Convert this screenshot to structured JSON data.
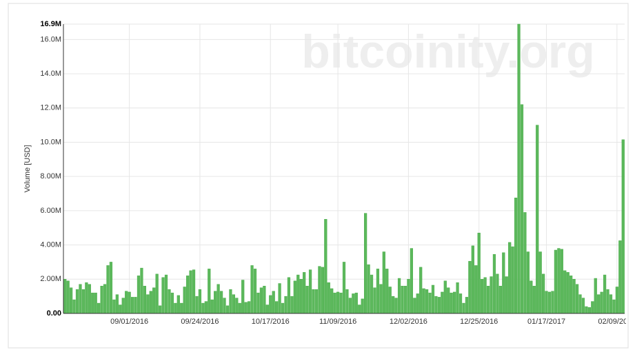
{
  "chart_data": {
    "type": "bar",
    "watermark": "bitcoinity.org",
    "y_label": "Volume [USD]",
    "categories": [
      null,
      null,
      null,
      null,
      null,
      null,
      null,
      null,
      null,
      null,
      null,
      null,
      null,
      null,
      null,
      null,
      null,
      null,
      null,
      null,
      null,
      "09/01/2016",
      null,
      null,
      null,
      null,
      null,
      null,
      null,
      null,
      null,
      null,
      null,
      null,
      null,
      null,
      null,
      null,
      null,
      null,
      null,
      null,
      null,
      null,
      "09/24/2016",
      null,
      null,
      null,
      null,
      null,
      null,
      null,
      null,
      null,
      null,
      null,
      null,
      null,
      null,
      null,
      null,
      null,
      null,
      null,
      null,
      null,
      null,
      "10/17/2016",
      null,
      null,
      null,
      null,
      null,
      null,
      null,
      null,
      null,
      null,
      null,
      null,
      null,
      null,
      null,
      null,
      null,
      null,
      null,
      null,
      null,
      "11/09/2016",
      null,
      null,
      null,
      null,
      null,
      null,
      null,
      null,
      null,
      null,
      null,
      null,
      null,
      null,
      null,
      null,
      null,
      null,
      null,
      null,
      null,
      null,
      "12/02/2016",
      null,
      null,
      null,
      null,
      null,
      null,
      null,
      null,
      null,
      null,
      null,
      null,
      null,
      null,
      null,
      null,
      null,
      null,
      null,
      null,
      null,
      null,
      "12/25/2016",
      null,
      null,
      null,
      null,
      null,
      null,
      null,
      null,
      null,
      null,
      null,
      null,
      null,
      null,
      null,
      null,
      null,
      null,
      null,
      null,
      null,
      "01/17/2017",
      null,
      null,
      null,
      null,
      null,
      null,
      null,
      null,
      null,
      null,
      null,
      null,
      null,
      null,
      null,
      null,
      null,
      null,
      null,
      null,
      null,
      null,
      "02/09/2017",
      null,
      null
    ],
    "values": [
      2.0,
      1.9,
      1.5,
      0.8,
      1.4,
      1.7,
      1.4,
      1.8,
      1.7,
      1.2,
      1.2,
      0.6,
      1.6,
      1.7,
      2.8,
      3.0,
      0.8,
      1.1,
      0.5,
      0.9,
      1.3,
      1.25,
      0.95,
      0.95,
      2.2,
      2.65,
      1.6,
      1.1,
      1.3,
      1.5,
      2.3,
      0.45,
      2.1,
      2.25,
      1.4,
      1.2,
      0.6,
      1.05,
      0.6,
      1.55,
      2.2,
      2.5,
      2.55,
      1.0,
      1.4,
      0.6,
      0.7,
      2.6,
      0.8,
      1.3,
      1.7,
      1.3,
      0.9,
      0.45,
      1.4,
      1.1,
      0.9,
      0.6,
      1.95,
      0.65,
      0.7,
      2.8,
      2.6,
      1.2,
      1.5,
      1.6,
      0.5,
      1.05,
      1.3,
      0.7,
      1.75,
      0.6,
      1.0,
      2.1,
      1.0,
      1.9,
      2.25,
      2.0,
      2.4,
      1.6,
      2.55,
      1.4,
      1.4,
      2.75,
      2.7,
      5.5,
      1.8,
      1.45,
      1.2,
      1.25,
      1.2,
      3.0,
      1.4,
      0.9,
      1.15,
      1.2,
      0.5,
      0.85,
      5.85,
      2.85,
      2.25,
      1.5,
      2.6,
      1.7,
      3.6,
      2.6,
      1.55,
      1.0,
      0.9,
      2.05,
      1.6,
      1.6,
      2.0,
      3.8,
      0.9,
      1.15,
      2.7,
      1.45,
      1.4,
      1.2,
      1.65,
      1.0,
      0.95,
      1.25,
      1.9,
      1.5,
      1.2,
      1.25,
      1.8,
      1.15,
      0.6,
      0.95,
      3.05,
      3.95,
      2.8,
      4.7,
      2.0,
      2.1,
      1.6,
      2.15,
      3.45,
      2.3,
      1.6,
      3.55,
      2.15,
      4.15,
      3.9,
      6.75,
      16.9,
      12.2,
      5.9,
      3.6,
      1.9,
      1.6,
      11.0,
      3.6,
      2.3,
      1.3,
      1.25,
      1.3,
      3.7,
      3.8,
      3.75,
      2.5,
      2.4,
      2.2,
      2.0,
      1.7,
      1.1,
      0.9,
      0.4,
      0.35,
      0.7,
      2.05,
      1.1,
      1.25,
      2.25,
      1.4,
      1.1,
      0.8,
      1.55,
      4.25,
      10.15
    ],
    "color": "#5cb85c",
    "ylim": [
      0,
      16.9
    ],
    "yticks": [
      {
        "value": 0,
        "label": "0.00"
      },
      {
        "value": 2,
        "label": "2.00M"
      },
      {
        "value": 4,
        "label": "4.00M"
      },
      {
        "value": 6,
        "label": "6.00M"
      },
      {
        "value": 8,
        "label": "8.00M"
      },
      {
        "value": 10,
        "label": "10.0M"
      },
      {
        "value": 12,
        "label": "12.0M"
      },
      {
        "value": 14,
        "label": "14.0M"
      },
      {
        "value": 16,
        "label": "16.0M"
      },
      {
        "value": 16.9,
        "label": "16.9M"
      }
    ],
    "grid": true
  }
}
